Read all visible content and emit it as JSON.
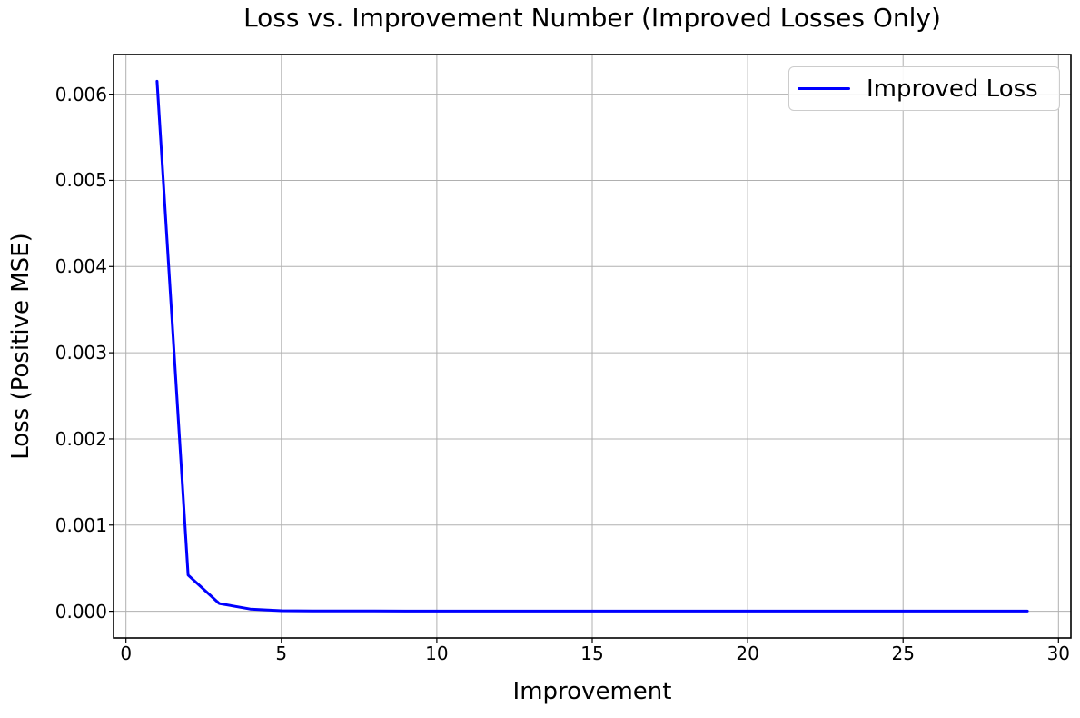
{
  "figure": {
    "background": "#ffffff"
  },
  "chart_data": {
    "type": "line",
    "title": "Loss vs. Improvement Number (Improved Losses Only)",
    "xlabel": "Improvement",
    "ylabel": "Loss (Positive MSE)",
    "grid": true,
    "legend": {
      "label": "Improved Loss",
      "position": "upper right"
    },
    "line_color": "#0000ff",
    "grid_color": "#b0b0b0",
    "axis_color": "#000000",
    "xlim": [
      -0.4,
      30.4
    ],
    "ylim": [
      -0.00031,
      0.00646
    ],
    "xticks": [
      0,
      5,
      10,
      15,
      20,
      25,
      30
    ],
    "xtick_labels": [
      "0",
      "5",
      "10",
      "15",
      "20",
      "25",
      "30"
    ],
    "yticks": [
      0,
      0.001,
      0.002,
      0.003,
      0.004,
      0.005,
      0.006
    ],
    "ytick_labels": [
      "0.000",
      "0.001",
      "0.002",
      "0.003",
      "0.004",
      "0.005",
      "0.006"
    ],
    "x": [
      1,
      2,
      3,
      4,
      5,
      6,
      7,
      8,
      9,
      10,
      11,
      12,
      13,
      14,
      15,
      16,
      17,
      18,
      19,
      20,
      21,
      22,
      23,
      24,
      25,
      26,
      27,
      28,
      29
    ],
    "series": [
      {
        "name": "Improved Loss",
        "color": "#0000ff",
        "values": [
          0.00615,
          0.00042,
          9e-05,
          2.5e-05,
          6e-06,
          4e-06,
          3e-06,
          3e-06,
          2e-06,
          2e-06,
          2e-06,
          2e-06,
          2e-06,
          2e-06,
          2e-06,
          2e-06,
          2e-06,
          2e-06,
          2e-06,
          2e-06,
          2e-06,
          2e-06,
          2e-06,
          2e-06,
          2e-06,
          2e-06,
          2e-06,
          2e-06,
          2e-06
        ]
      }
    ]
  }
}
